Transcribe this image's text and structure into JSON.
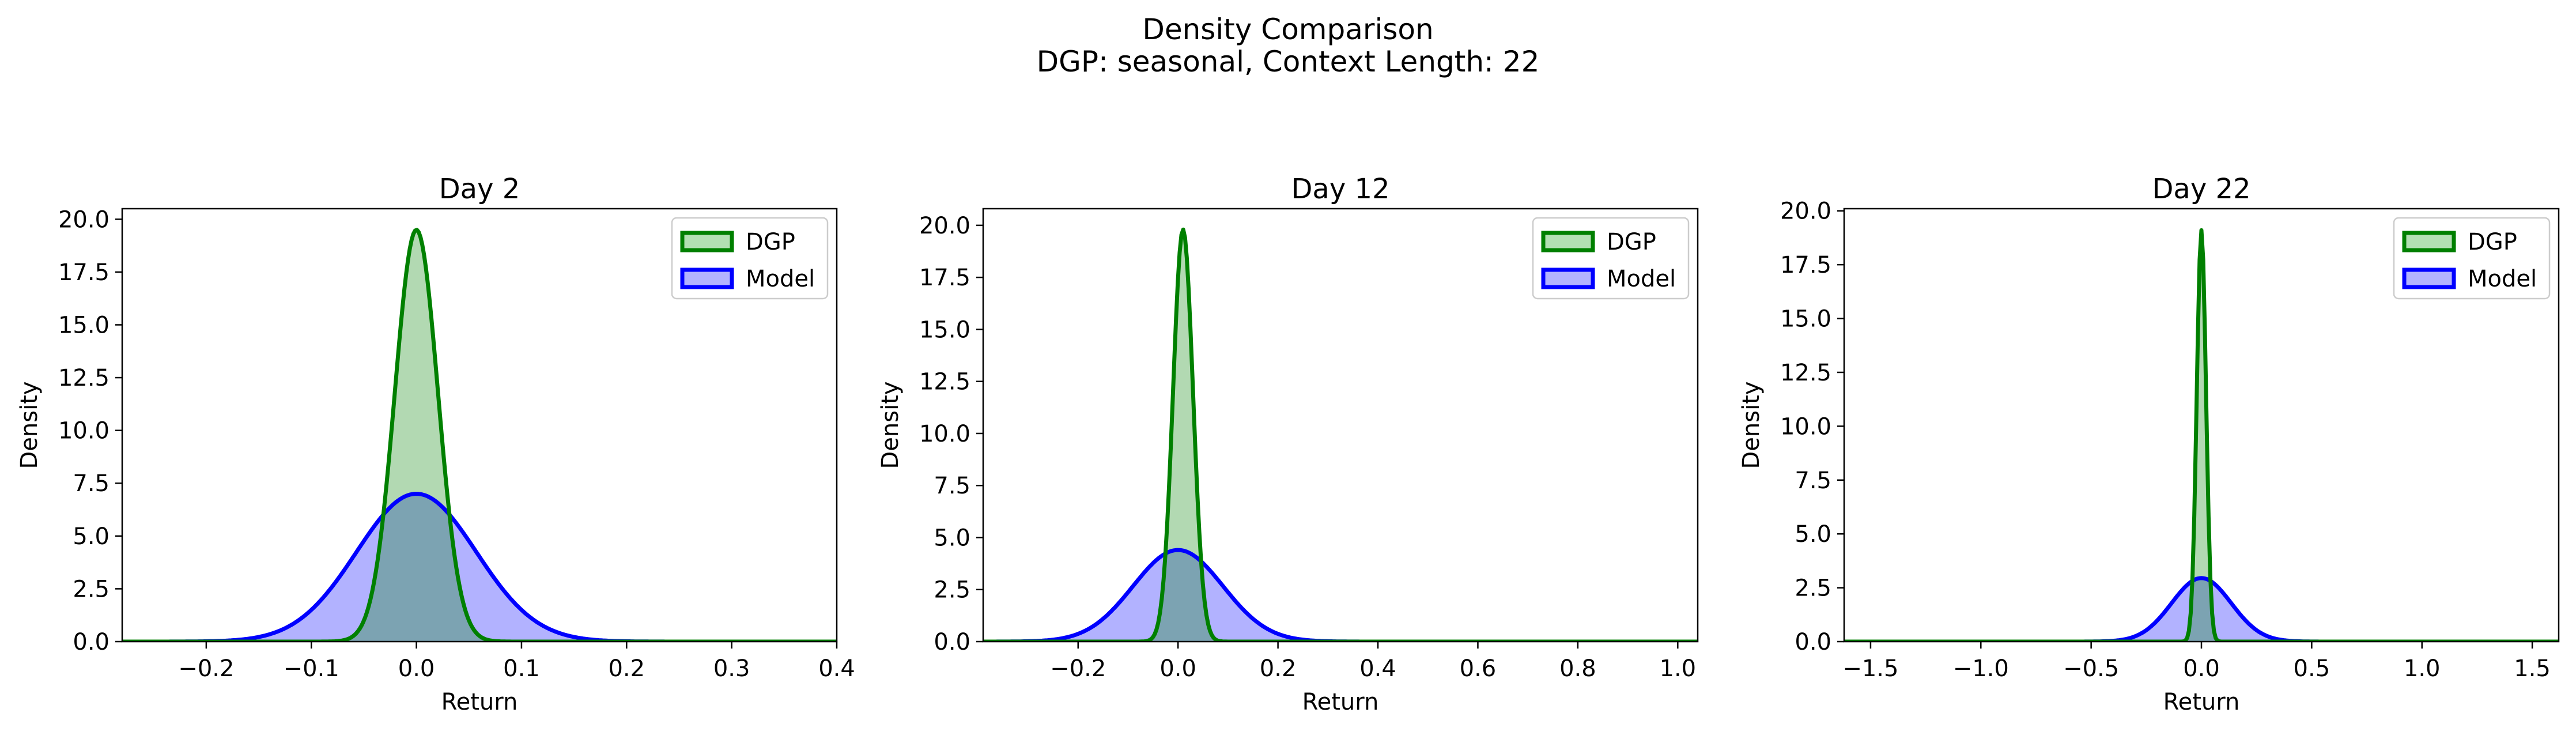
{
  "figure": {
    "title": "Density Comparison",
    "subtitle": "DGP: seasonal, Context Length: 22"
  },
  "colors": {
    "dgp_line": "#008000",
    "dgp_fill": "#b3e0b3",
    "model_line": "#0000ff",
    "model_fill": "#b3b3ff",
    "overlap_fill": "#7a9bc9"
  },
  "chart_data": [
    {
      "type": "area",
      "title": "Day 2",
      "xlabel": "Return",
      "ylabel": "Density",
      "xlim": [
        -0.28,
        0.4
      ],
      "ylim": [
        0,
        20.5
      ],
      "xticks": [
        -0.2,
        -0.1,
        0.0,
        0.1,
        0.2,
        0.3,
        0.4
      ],
      "xtick_labels": [
        "−0.2",
        "−0.1",
        "0.0",
        "0.1",
        "0.2",
        "0.3",
        "0.4"
      ],
      "yticks": [
        0,
        2.5,
        5,
        7.5,
        10,
        12.5,
        15,
        17.5,
        20
      ],
      "ytick_labels": [
        "0.0",
        "2.5",
        "5.0",
        "7.5",
        "10.0",
        "12.5",
        "15.0",
        "17.5",
        "20.0"
      ],
      "legend": {
        "location": "top-right",
        "entries": [
          "DGP",
          "Model"
        ]
      },
      "series": [
        {
          "name": "DGP",
          "mean": 0.0,
          "std": 0.0205,
          "peak": 19.5
        },
        {
          "name": "Model",
          "mean": 0.0,
          "std": 0.057,
          "peak": 7.0
        }
      ]
    },
    {
      "type": "area",
      "title": "Day 12",
      "xlabel": "Return",
      "ylabel": "Density",
      "xlim": [
        -0.39,
        1.04
      ],
      "ylim": [
        0,
        20.8
      ],
      "xticks": [
        -0.2,
        0.0,
        0.2,
        0.4,
        0.6,
        0.8,
        1.0
      ],
      "xtick_labels": [
        "−0.2",
        "0.0",
        "0.2",
        "0.4",
        "0.6",
        "0.8",
        "1.0"
      ],
      "yticks": [
        0,
        2.5,
        5,
        7.5,
        10,
        12.5,
        15,
        17.5,
        20
      ],
      "ytick_labels": [
        "0.0",
        "2.5",
        "5.0",
        "7.5",
        "10.0",
        "12.5",
        "15.0",
        "17.5",
        "20.0"
      ],
      "legend": {
        "location": "top-right",
        "entries": [
          "DGP",
          "Model"
        ]
      },
      "series": [
        {
          "name": "DGP",
          "mean": 0.01,
          "std": 0.02,
          "peak": 19.8
        },
        {
          "name": "Model",
          "mean": 0.0,
          "std": 0.09,
          "peak": 4.4
        }
      ]
    },
    {
      "type": "area",
      "title": "Day 22",
      "xlabel": "Return",
      "ylabel": "Density",
      "xlim": [
        -1.62,
        1.62
      ],
      "ylim": [
        0,
        20.1
      ],
      "xticks": [
        -1.5,
        -1.0,
        -0.5,
        0.0,
        0.5,
        1.0,
        1.5
      ],
      "xtick_labels": [
        "−1.5",
        "−1.0",
        "−0.5",
        "0.0",
        "0.5",
        "1.0",
        "1.5"
      ],
      "yticks": [
        0,
        2.5,
        5,
        7.5,
        10,
        12.5,
        15,
        17.5,
        20
      ],
      "ytick_labels": [
        "0.0",
        "2.5",
        "5.0",
        "7.5",
        "10.0",
        "12.5",
        "15.0",
        "17.5",
        "20.0"
      ],
      "legend": {
        "location": "top-right",
        "entries": [
          "DGP",
          "Model"
        ]
      },
      "series": [
        {
          "name": "DGP",
          "mean": 0.0,
          "std": 0.021,
          "peak": 19.1
        },
        {
          "name": "Model",
          "mean": 0.0,
          "std": 0.135,
          "peak": 2.95
        }
      ]
    }
  ]
}
